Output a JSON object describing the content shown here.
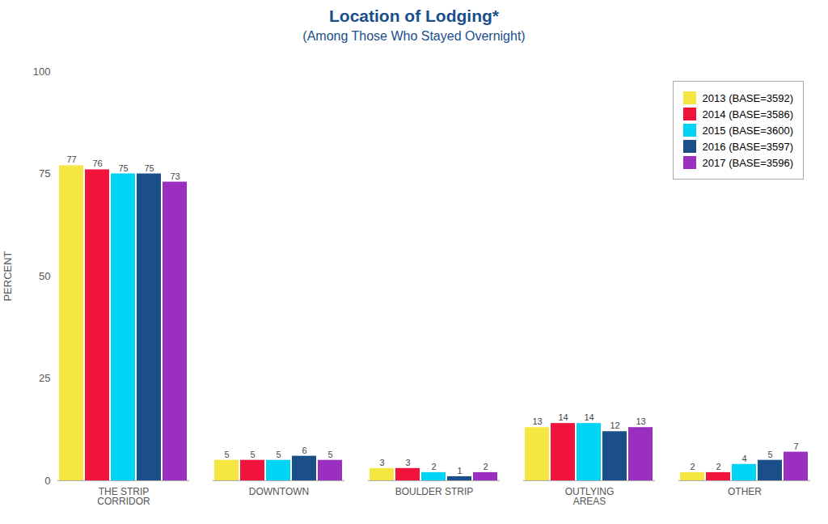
{
  "chart_data": {
    "type": "bar",
    "title": "Location of Lodging*",
    "subtitle": "(Among Those Who Stayed Overnight)",
    "ylabel": "PERCENT",
    "categories": [
      "THE STRIP\nCORRIDOR",
      "DOWNTOWN",
      "BOULDER STRIP",
      "OUTLYING\nAREAS",
      "OTHER"
    ],
    "series": [
      {
        "name": "2013 (BASE=3592)",
        "color": "#f5e642",
        "values": [
          77,
          5,
          3,
          13,
          2
        ]
      },
      {
        "name": "2014 (BASE=3586)",
        "color": "#f0143c",
        "values": [
          76,
          5,
          3,
          14,
          2
        ]
      },
      {
        "name": "2015 (BASE=3600)",
        "color": "#00d4f5",
        "values": [
          75,
          5,
          2,
          14,
          4
        ]
      },
      {
        "name": "2016 (BASE=3597)",
        "color": "#1a4f8a",
        "values": [
          75,
          6,
          1,
          12,
          5
        ]
      },
      {
        "name": "2017 (BASE=3596)",
        "color": "#9b30c0",
        "values": [
          73,
          5,
          2,
          13,
          7
        ]
      }
    ],
    "ylim": [
      0,
      100
    ],
    "yticks": [
      0,
      25,
      50,
      75,
      100
    ],
    "grid": false,
    "legend": "upper right",
    "data_labels": true
  }
}
